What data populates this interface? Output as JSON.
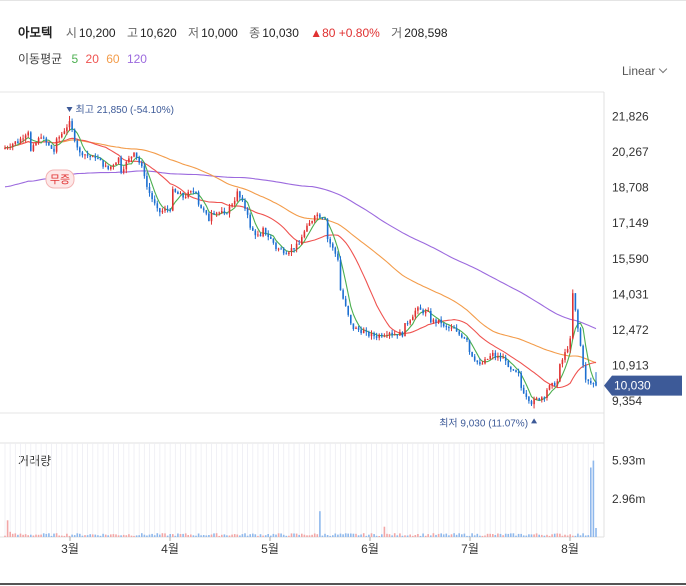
{
  "stock": {
    "name": "아모텍",
    "open_label": "시",
    "open": "10,200",
    "high_label": "고",
    "high": "10,620",
    "low_label": "저",
    "low": "10,000",
    "close_label": "종",
    "close": "10,030",
    "change": "▲80 +0.80%",
    "volume_label": "거",
    "volume": "208,598"
  },
  "ma_legend": {
    "label": "이동평균",
    "periods": [
      "5",
      "20",
      "60",
      "120"
    ],
    "colors": [
      "#4caf50",
      "#ef5350",
      "#f39c4a",
      "#9c6ade"
    ]
  },
  "scale_button": {
    "label": "Linear"
  },
  "volume_title": "거래량",
  "colors": {
    "up": "#e03131",
    "down": "#1c6fd1",
    "price_badge": "#3d5a98"
  },
  "chart_data": {
    "type": "candlestick",
    "x_tick_labels": [
      "3월",
      "4월",
      "5월",
      "6월",
      "7월",
      "8월"
    ],
    "y_tick_labels": [
      "21,826",
      "20,267",
      "18,708",
      "17,149",
      "15,590",
      "14,031",
      "12,472",
      "10,913",
      "9,354"
    ],
    "y_ticks": [
      21826,
      20267,
      18708,
      17149,
      15590,
      14031,
      12472,
      10913,
      9354
    ],
    "ylim": [
      8830,
      22900
    ],
    "current_price": 10030,
    "current_price_label": "10,030",
    "high_annotation": "최고 21,850 (-54.10%)",
    "high_value": 21850,
    "low_annotation": "최저 9,030 (11.07%)",
    "low_value": 9030,
    "event_label": "무증",
    "volume_tick_labels": [
      "5.93m",
      "2.96m"
    ],
    "volume_ticks": [
      5.93,
      2.96
    ],
    "volume_max": 7.3,
    "start": 20400,
    "waypoints": [
      [
        20400,
        20700
      ],
      [
        20600,
        21200
      ],
      [
        20100,
        21000
      ],
      [
        20900,
        20300
      ],
      [
        20600,
        21400
      ],
      [
        21850,
        20200
      ],
      [
        20300,
        20000
      ],
      [
        20200,
        19600
      ],
      [
        19400,
        20000
      ],
      [
        19300,
        20100
      ],
      [
        20600,
        19300
      ],
      [
        19000,
        17700
      ],
      [
        17600,
        17800
      ],
      [
        18600,
        18300
      ],
      [
        18300,
        18600
      ],
      [
        18200,
        17300
      ],
      [
        17700,
        17600
      ],
      [
        17300,
        18200
      ],
      [
        18700,
        17600
      ],
      [
        17000,
        16500
      ],
      [
        17000,
        16300
      ],
      [
        16100,
        15900
      ],
      [
        15900,
        16200
      ],
      [
        16400,
        17300
      ],
      [
        17600,
        17400
      ],
      [
        16700,
        15600
      ],
      [
        14600,
        12700
      ],
      [
        12600,
        12400
      ],
      [
        12300,
        12200
      ],
      [
        12200,
        12400
      ],
      [
        12300,
        12300
      ],
      [
        12500,
        13300
      ],
      [
        13400,
        13200
      ],
      [
        12900,
        12800
      ],
      [
        12600,
        12500
      ],
      [
        12400,
        12100
      ],
      [
        11700,
        10900
      ],
      [
        10900,
        11400
      ],
      [
        11300,
        11200
      ],
      [
        10800,
        10500
      ],
      [
        10100,
        9300
      ],
      [
        9300,
        9600
      ],
      [
        9800,
        10200
      ],
      [
        10600,
        12000
      ],
      [
        14800,
        11000
      ],
      [
        10300,
        10030
      ]
    ],
    "volume_spikes": {
      "0": 1.3,
      "1": 0.4,
      "26": 2.0,
      "30": 0.8,
      "57": 5.4,
      "58": 5.93,
      "59": 0.7
    },
    "sessions_per_month": 20
  }
}
